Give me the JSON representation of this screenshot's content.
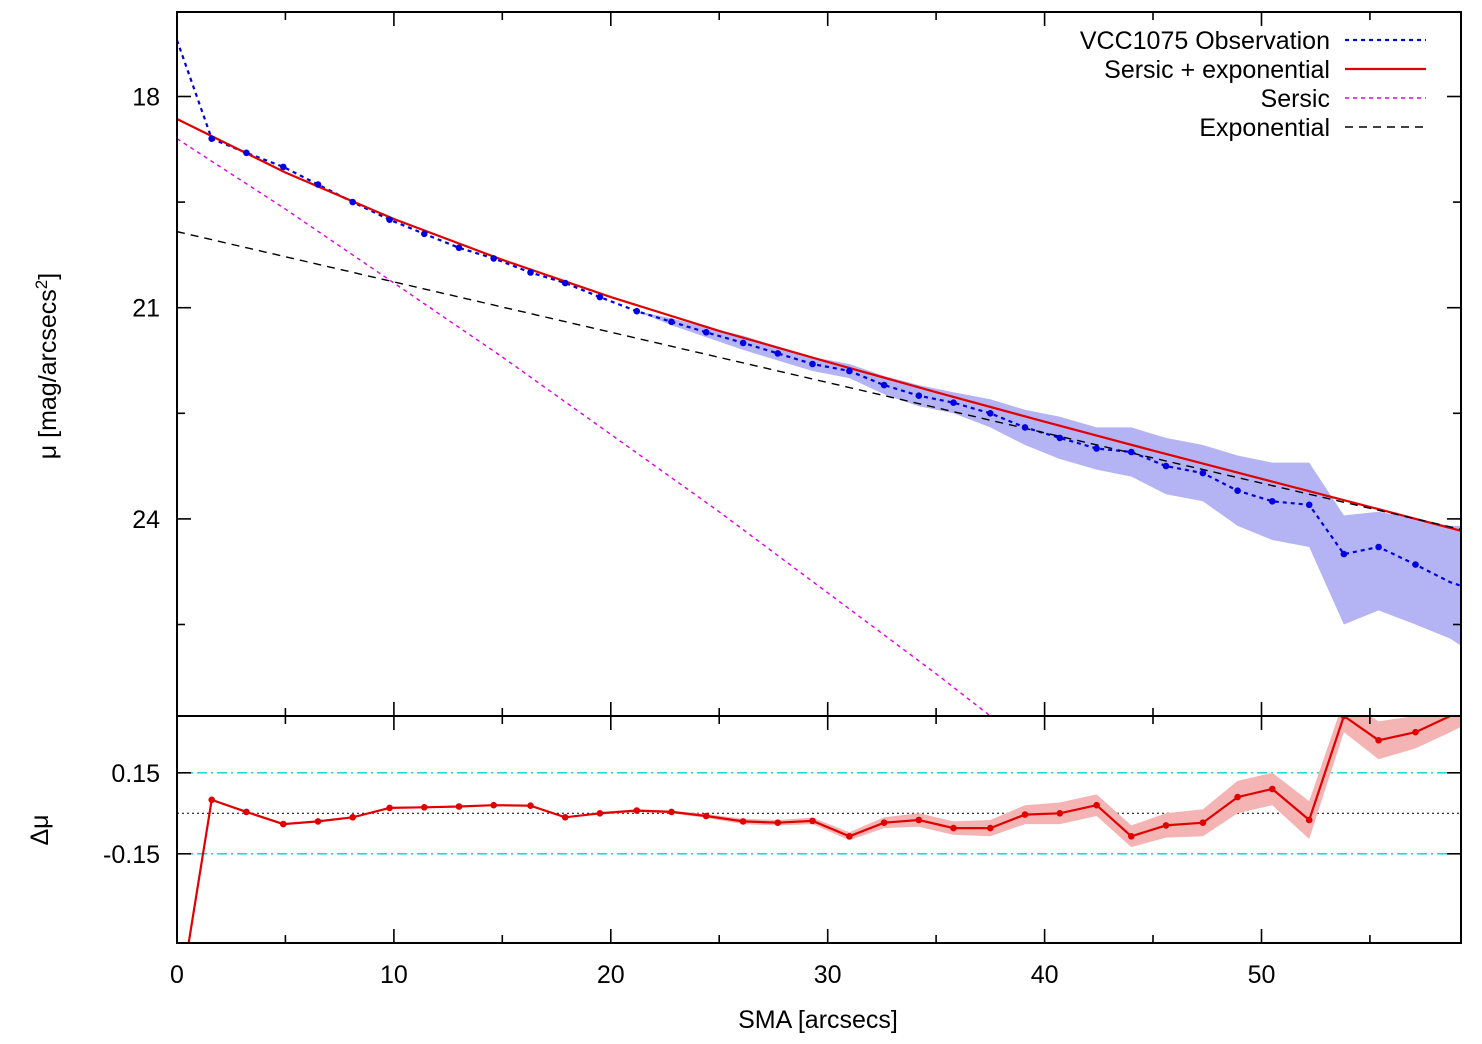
{
  "chart_data": [
    {
      "type": "line",
      "panel": "profile",
      "ylabel_main": "μ [mag/arcsecs",
      "ylabel_sup": "2",
      "ylabel_close": "]",
      "ylim": [
        16.8,
        26.8
      ],
      "y_inverted": true,
      "xlim": [
        0,
        59.2
      ],
      "yticks": [
        18,
        21,
        24
      ],
      "ytick_labels": [
        "18",
        "21",
        "24"
      ],
      "legend_position": "top-right",
      "series": [
        {
          "name": "VCC1075 Observation",
          "style": "dotted-with-points",
          "color": "#0000e0",
          "band_color": "#b4b4f4",
          "x": [
            0,
            1.6,
            3.2,
            4.9,
            6.5,
            8.1,
            9.8,
            11.4,
            13.0,
            14.6,
            16.3,
            17.9,
            19.5,
            21.2,
            22.8,
            24.4,
            26.1,
            27.7,
            29.3,
            31.0,
            32.6,
            34.2,
            35.8,
            37.5,
            39.1,
            40.7,
            42.4,
            44.0,
            45.6,
            47.3,
            48.9,
            50.5,
            52.2,
            53.8,
            55.4,
            57.1,
            58.7,
            59.2
          ],
          "y": [
            17.2,
            18.6,
            18.8,
            19.0,
            19.25,
            19.5,
            19.75,
            19.95,
            20.15,
            20.3,
            20.5,
            20.65,
            20.85,
            21.05,
            21.2,
            21.35,
            21.5,
            21.65,
            21.8,
            21.9,
            22.1,
            22.25,
            22.35,
            22.5,
            22.7,
            22.85,
            23.0,
            23.05,
            23.25,
            23.35,
            23.6,
            23.75,
            23.8,
            24.5,
            24.4,
            24.65,
            24.9,
            24.95
          ],
          "band_lower": [
            17.2,
            18.6,
            18.8,
            19.0,
            19.25,
            19.5,
            19.75,
            19.95,
            20.15,
            20.3,
            20.5,
            20.65,
            20.85,
            21.05,
            21.15,
            21.28,
            21.4,
            21.55,
            21.7,
            21.8,
            21.97,
            22.1,
            22.2,
            22.3,
            22.45,
            22.55,
            22.7,
            22.7,
            22.85,
            22.95,
            23.1,
            23.2,
            23.2,
            23.95,
            23.9,
            24.0,
            24.1,
            24.1
          ],
          "band_upper": [
            17.2,
            18.6,
            18.8,
            19.0,
            19.25,
            19.5,
            19.75,
            19.95,
            20.15,
            20.3,
            20.5,
            20.65,
            20.85,
            21.05,
            21.25,
            21.42,
            21.6,
            21.75,
            21.9,
            22.0,
            22.23,
            22.4,
            22.5,
            22.7,
            22.95,
            23.15,
            23.3,
            23.4,
            23.65,
            23.75,
            24.1,
            24.3,
            24.4,
            25.5,
            25.3,
            25.5,
            25.7,
            25.8
          ]
        },
        {
          "name": "Sersic + exponential",
          "style": "solid",
          "color": "#e00000",
          "x": [
            0,
            5,
            10,
            15,
            20,
            25,
            30,
            35,
            40,
            45,
            50,
            55,
            59.2
          ],
          "y": [
            18.32,
            19.08,
            19.74,
            20.32,
            20.85,
            21.33,
            21.77,
            22.2,
            22.62,
            23.03,
            23.43,
            23.83,
            24.17
          ]
        },
        {
          "name": "Sersic",
          "style": "dotted",
          "color": "#e000e0",
          "x": [
            0,
            5,
            10,
            15,
            20,
            25,
            30,
            35,
            40
          ],
          "y": [
            18.6,
            19.6,
            20.65,
            21.7,
            22.8,
            23.9,
            25.05,
            26.2,
            27.4
          ]
        },
        {
          "name": "Exponential",
          "style": "dashed",
          "color": "#000000",
          "x": [
            0,
            59.2
          ],
          "y": [
            19.92,
            24.15
          ]
        }
      ]
    },
    {
      "type": "line",
      "panel": "residuals",
      "xlabel": "SMA [arcsecs]",
      "ylabel": "Δμ",
      "xlim": [
        0,
        59.2
      ],
      "ylim": [
        -0.48,
        0.36
      ],
      "xticks": [
        0,
        10,
        20,
        30,
        40,
        50
      ],
      "xtick_labels": [
        "0",
        "10",
        "20",
        "30",
        "40",
        "50"
      ],
      "yticks": [
        0.15,
        -0.15
      ],
      "ytick_labels": [
        "0.15",
        "-0.15"
      ],
      "reference_lines": [
        0.15,
        0,
        -0.15
      ],
      "series": [
        {
          "name": "",
          "style": "solid-with-points",
          "color": "#e00000",
          "band_color": "#f4b4b4",
          "x": [
            0.5,
            1.6,
            3.2,
            4.9,
            6.5,
            8.1,
            9.8,
            11.4,
            13.0,
            14.6,
            16.3,
            17.9,
            19.5,
            21.2,
            22.8,
            24.4,
            26.1,
            27.7,
            29.3,
            31.0,
            32.6,
            34.2,
            35.8,
            37.5,
            39.1,
            40.7,
            42.4,
            44.0,
            45.6,
            47.3,
            48.9,
            50.5,
            52.2,
            53.8,
            55.4,
            57.1,
            58.7,
            59.2
          ],
          "y": [
            -0.5,
            0.05,
            0.005,
            -0.04,
            -0.03,
            -0.015,
            0.02,
            0.022,
            0.025,
            0.03,
            0.028,
            -0.015,
            0.0,
            0.01,
            0.005,
            -0.01,
            -0.03,
            -0.035,
            -0.028,
            -0.085,
            -0.035,
            -0.025,
            -0.055,
            -0.055,
            -0.005,
            0.0,
            0.03,
            -0.085,
            -0.045,
            -0.035,
            0.06,
            0.09,
            -0.025,
            0.36,
            0.27,
            0.3,
            0.36,
            0.38
          ],
          "band_lower": [
            -0.5,
            0.05,
            0.005,
            -0.04,
            -0.03,
            -0.015,
            0.02,
            0.022,
            0.025,
            0.03,
            0.028,
            -0.015,
            -0.005,
            0.005,
            0.0,
            -0.017,
            -0.04,
            -0.045,
            -0.04,
            -0.1,
            -0.055,
            -0.05,
            -0.08,
            -0.085,
            -0.04,
            -0.04,
            -0.01,
            -0.125,
            -0.09,
            -0.085,
            0.0,
            0.03,
            -0.095,
            0.3,
            0.2,
            0.24,
            0.3,
            0.32
          ],
          "band_upper": [
            -0.5,
            0.05,
            0.005,
            -0.04,
            -0.03,
            -0.015,
            0.02,
            0.022,
            0.025,
            0.03,
            0.028,
            -0.015,
            0.005,
            0.015,
            0.01,
            -0.003,
            -0.02,
            -0.025,
            -0.016,
            -0.07,
            -0.015,
            0.0,
            -0.03,
            -0.025,
            0.03,
            0.04,
            0.07,
            -0.045,
            0.0,
            0.015,
            0.12,
            0.15,
            0.045,
            0.42,
            0.34,
            0.36,
            0.42,
            0.44
          ]
        }
      ]
    }
  ]
}
